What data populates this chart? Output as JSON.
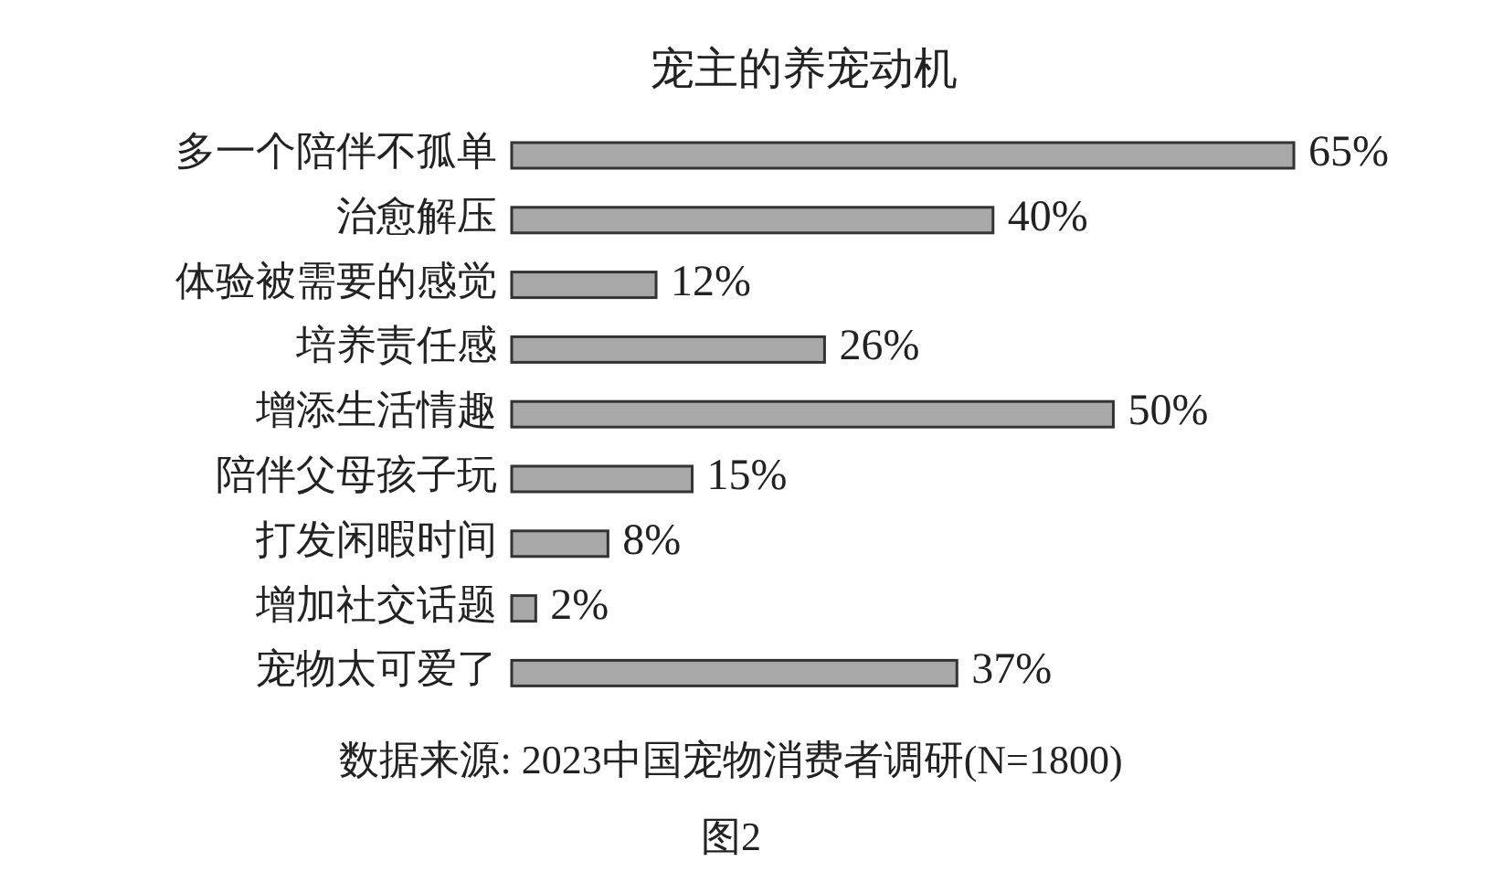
{
  "chart_data": {
    "type": "bar",
    "orientation": "horizontal",
    "title": "宠主的养宠动机",
    "categories": [
      "多一个陪伴不孤单",
      "治愈解压",
      "体验被需要的感觉",
      "培养责任感",
      "增添生活情趣",
      "陪伴父母孩子玩",
      "打发闲暇时间",
      "增加社交话题",
      "宠物太可爱了"
    ],
    "values": [
      65,
      40,
      12,
      26,
      50,
      15,
      8,
      2,
      37
    ],
    "value_labels": [
      "65%",
      "40%",
      "12%",
      "26%",
      "50%",
      "15%",
      "8%",
      "2%",
      "37%"
    ],
    "color": "#a8a8a8",
    "annotations": [
      "数据来源: 2023中国宠物消费者调研(N=1800)",
      "图2"
    ]
  }
}
